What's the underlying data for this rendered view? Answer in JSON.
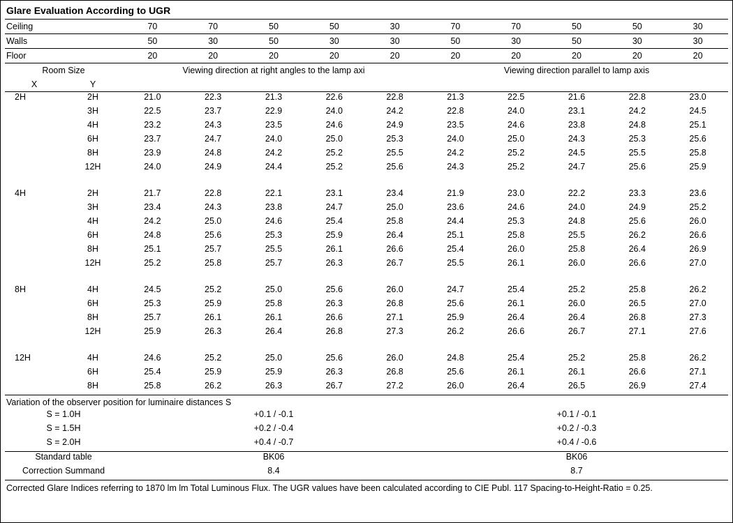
{
  "title": "Glare Evaluation According to UGR",
  "reflectances": {
    "labels": {
      "ceiling": "Ceiling",
      "walls": "Walls",
      "floor": "Floor"
    },
    "ceiling": [
      "70",
      "70",
      "50",
      "50",
      "30",
      "70",
      "70",
      "50",
      "50",
      "30"
    ],
    "walls": [
      "50",
      "30",
      "50",
      "30",
      "30",
      "50",
      "30",
      "50",
      "30",
      "30"
    ],
    "floor": [
      "20",
      "20",
      "20",
      "20",
      "20",
      "20",
      "20",
      "20",
      "20",
      "20"
    ]
  },
  "roomsize_label": "Room Size",
  "x_label": "X",
  "y_label": "Y",
  "viewing_left": "Viewing direction at right angles to the lamp axi",
  "viewing_right": "Viewing direction parallel to lamp axis",
  "groups": [
    {
      "x": "2H",
      "rows": [
        {
          "y": "2H",
          "v": [
            "21.0",
            "22.3",
            "21.3",
            "22.6",
            "22.8",
            "21.3",
            "22.5",
            "21.6",
            "22.8",
            "23.0"
          ]
        },
        {
          "y": "3H",
          "v": [
            "22.5",
            "23.7",
            "22.9",
            "24.0",
            "24.2",
            "22.8",
            "24.0",
            "23.1",
            "24.2",
            "24.5"
          ]
        },
        {
          "y": "4H",
          "v": [
            "23.2",
            "24.3",
            "23.5",
            "24.6",
            "24.9",
            "23.5",
            "24.6",
            "23.8",
            "24.8",
            "25.1"
          ]
        },
        {
          "y": "6H",
          "v": [
            "23.7",
            "24.7",
            "24.0",
            "25.0",
            "25.3",
            "24.0",
            "25.0",
            "24.3",
            "25.3",
            "25.6"
          ]
        },
        {
          "y": "8H",
          "v": [
            "23.9",
            "24.8",
            "24.2",
            "25.2",
            "25.5",
            "24.2",
            "25.2",
            "24.5",
            "25.5",
            "25.8"
          ]
        },
        {
          "y": "12H",
          "v": [
            "24.0",
            "24.9",
            "24.4",
            "25.2",
            "25.6",
            "24.3",
            "25.2",
            "24.7",
            "25.6",
            "25.9"
          ]
        }
      ]
    },
    {
      "x": "4H",
      "rows": [
        {
          "y": "2H",
          "v": [
            "21.7",
            "22.8",
            "22.1",
            "23.1",
            "23.4",
            "21.9",
            "23.0",
            "22.2",
            "23.3",
            "23.6"
          ]
        },
        {
          "y": "3H",
          "v": [
            "23.4",
            "24.3",
            "23.8",
            "24.7",
            "25.0",
            "23.6",
            "24.6",
            "24.0",
            "24.9",
            "25.2"
          ]
        },
        {
          "y": "4H",
          "v": [
            "24.2",
            "25.0",
            "24.6",
            "25.4",
            "25.8",
            "24.4",
            "25.3",
            "24.8",
            "25.6",
            "26.0"
          ]
        },
        {
          "y": "6H",
          "v": [
            "24.8",
            "25.6",
            "25.3",
            "25.9",
            "26.4",
            "25.1",
            "25.8",
            "25.5",
            "26.2",
            "26.6"
          ]
        },
        {
          "y": "8H",
          "v": [
            "25.1",
            "25.7",
            "25.5",
            "26.1",
            "26.6",
            "25.4",
            "26.0",
            "25.8",
            "26.4",
            "26.9"
          ]
        },
        {
          "y": "12H",
          "v": [
            "25.2",
            "25.8",
            "25.7",
            "26.3",
            "26.7",
            "25.5",
            "26.1",
            "26.0",
            "26.6",
            "27.0"
          ]
        }
      ]
    },
    {
      "x": "8H",
      "rows": [
        {
          "y": "4H",
          "v": [
            "24.5",
            "25.2",
            "25.0",
            "25.6",
            "26.0",
            "24.7",
            "25.4",
            "25.2",
            "25.8",
            "26.2"
          ]
        },
        {
          "y": "6H",
          "v": [
            "25.3",
            "25.9",
            "25.8",
            "26.3",
            "26.8",
            "25.6",
            "26.1",
            "26.0",
            "26.5",
            "27.0"
          ]
        },
        {
          "y": "8H",
          "v": [
            "25.7",
            "26.1",
            "26.1",
            "26.6",
            "27.1",
            "25.9",
            "26.4",
            "26.4",
            "26.8",
            "27.3"
          ]
        },
        {
          "y": "12H",
          "v": [
            "25.9",
            "26.3",
            "26.4",
            "26.8",
            "27.3",
            "26.2",
            "26.6",
            "26.7",
            "27.1",
            "27.6"
          ]
        }
      ]
    },
    {
      "x": "12H",
      "rows": [
        {
          "y": "4H",
          "v": [
            "24.6",
            "25.2",
            "25.0",
            "25.6",
            "26.0",
            "24.8",
            "25.4",
            "25.2",
            "25.8",
            "26.2"
          ]
        },
        {
          "y": "6H",
          "v": [
            "25.4",
            "25.9",
            "25.9",
            "26.3",
            "26.8",
            "25.6",
            "26.1",
            "26.1",
            "26.6",
            "27.1"
          ]
        },
        {
          "y": "8H",
          "v": [
            "25.8",
            "26.2",
            "26.3",
            "26.7",
            "27.2",
            "26.0",
            "26.4",
            "26.5",
            "26.9",
            "27.4"
          ]
        }
      ]
    }
  ],
  "variation_header": "Variation of the observer position for luminaire distances S",
  "variations": [
    {
      "s": "S = 1.0H",
      "l": "+0.1 / -0.1",
      "r": "+0.1 / -0.1"
    },
    {
      "s": "S = 1.5H",
      "l": "+0.2 / -0.4",
      "r": "+0.2 / -0.3"
    },
    {
      "s": "S = 2.0H",
      "l": "+0.4 / -0.7",
      "r": "+0.4 / -0.6"
    }
  ],
  "standard_table_label": "Standard table",
  "standard_table": {
    "l": "BK06",
    "r": "BK06"
  },
  "correction_label": "Correction Summand",
  "correction": {
    "l": "8.4",
    "r": "8.7"
  },
  "footnote": "Corrected Glare Indices referring to 1870 lm lm Total Luminous Flux. The UGR values have been calculated according to CIE Publ. 117    Spacing-to-Height-Ratio = 0.25."
}
